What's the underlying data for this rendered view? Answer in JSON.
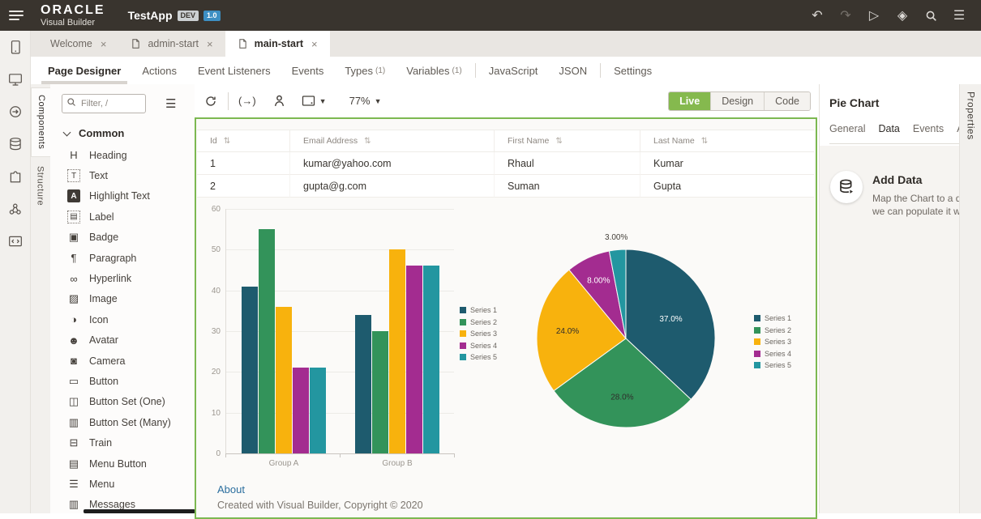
{
  "colors": {
    "accent_green": "#7cb851",
    "live_button_green": "#85b94e",
    "link_blue": "#2b6e9e",
    "header_dark": "#39342e",
    "version_badge_blue": "#3d8fc3"
  },
  "header": {
    "logo_line1": "ORACLE",
    "logo_line2": "Visual Builder",
    "app_name": "TestApp",
    "env_badge": "DEV",
    "version_badge": "1.0",
    "icons": [
      {
        "name": "undo-icon",
        "glyph": "undo",
        "disabled": false
      },
      {
        "name": "redo-icon",
        "glyph": "redo",
        "disabled": true
      },
      {
        "name": "run-play-icon",
        "glyph": "play",
        "disabled": false
      },
      {
        "name": "publish-diamond-icon",
        "glyph": "diamond",
        "disabled": false
      },
      {
        "name": "search-icon",
        "glyph": "search",
        "disabled": false
      },
      {
        "name": "overflow-menu-icon",
        "glyph": "menu",
        "disabled": false
      }
    ]
  },
  "left_rail": [
    {
      "name": "rail-tablet",
      "icon": "tablet-icon"
    },
    {
      "name": "rail-monitor",
      "icon": "monitor-icon"
    },
    {
      "name": "rail-service-connections",
      "icon": "circle-arrow-icon"
    },
    {
      "name": "rail-business-objects",
      "icon": "database-icon"
    },
    {
      "name": "rail-components",
      "icon": "puzzle-icon"
    },
    {
      "name": "rail-processes",
      "icon": "nodes-icon"
    },
    {
      "name": "rail-source",
      "icon": "code-brackets-icon"
    }
  ],
  "document_tabs": [
    {
      "label": "Welcome",
      "has_page_icon": false,
      "active": false
    },
    {
      "label": "admin-start",
      "has_page_icon": true,
      "active": false
    },
    {
      "label": "main-start",
      "has_page_icon": true,
      "active": true
    }
  ],
  "editor_tabs": [
    {
      "label": "Page Designer",
      "active": true
    },
    {
      "label": "Actions"
    },
    {
      "label": "Event Listeners"
    },
    {
      "label": "Events"
    },
    {
      "label": "Types",
      "count": "(1)"
    },
    {
      "label": "Variables",
      "count": "(1)"
    },
    {
      "label": "JavaScript",
      "sep_before": true
    },
    {
      "label": "JSON"
    },
    {
      "label": "Settings",
      "sep_before": true
    }
  ],
  "components_panel": {
    "side_tabs": [
      {
        "label": "Components",
        "active": true
      },
      {
        "label": "Structure",
        "active": false
      }
    ],
    "filter_placeholder": "Filter, /",
    "section_label": "Common",
    "items": [
      {
        "label": "Heading",
        "icon": "heading-icon"
      },
      {
        "label": "Text",
        "icon": "text-icon"
      },
      {
        "label": "Highlight Text",
        "icon": "highlight-text-icon"
      },
      {
        "label": "Label",
        "icon": "label-icon"
      },
      {
        "label": "Badge",
        "icon": "badge-icon"
      },
      {
        "label": "Paragraph",
        "icon": "paragraph-icon"
      },
      {
        "label": "Hyperlink",
        "icon": "hyperlink-icon"
      },
      {
        "label": "Image",
        "icon": "image-icon"
      },
      {
        "label": "Icon",
        "icon": "icon-icon"
      },
      {
        "label": "Avatar",
        "icon": "avatar-icon"
      },
      {
        "label": "Camera",
        "icon": "camera-icon"
      },
      {
        "label": "Button",
        "icon": "button-icon"
      },
      {
        "label": "Button Set (One)",
        "icon": "button-set-one-icon"
      },
      {
        "label": "Button Set (Many)",
        "icon": "button-set-many-icon"
      },
      {
        "label": "Train",
        "icon": "train-icon"
      },
      {
        "label": "Menu Button",
        "icon": "menu-button-icon"
      },
      {
        "label": "Menu",
        "icon": "menu-icon"
      },
      {
        "label": "Messages",
        "icon": "messages-icon"
      }
    ]
  },
  "canvas": {
    "toolbar": {
      "paren_arrow_glyph": "(→)",
      "zoom_level": "77%",
      "modes": [
        {
          "label": "Live",
          "active": true
        },
        {
          "label": "Design",
          "active": false
        },
        {
          "label": "Code",
          "active": false
        }
      ]
    },
    "table": {
      "columns": [
        "Id",
        "Email Address",
        "First Name",
        "Last Name"
      ],
      "rows": [
        [
          "1",
          "kumar@yahoo.com",
          "Rhaul",
          "Kumar"
        ],
        [
          "2",
          "gupta@g.com",
          "Suman",
          "Gupta"
        ]
      ]
    },
    "footer": {
      "link": "About",
      "copyright": "Created with Visual Builder, Copyright © 2020"
    }
  },
  "properties_panel": {
    "title": "Pie Chart",
    "tabs": [
      {
        "label": "General",
        "active": false
      },
      {
        "label": "Data",
        "active": true
      },
      {
        "label": "Events",
        "active": false
      },
      {
        "label": "All",
        "active": false
      }
    ],
    "vertical_label": "Properties",
    "add_data": {
      "heading": "Add Data",
      "description_line1": "Map the Chart to a da",
      "description_line2": "we can populate it wit"
    }
  },
  "chart_data": [
    {
      "type": "bar",
      "title": "",
      "categories": [
        "Group A",
        "Group B"
      ],
      "series": [
        {
          "name": "Series 1",
          "color": "#1e5b6e",
          "values": [
            41,
            34
          ]
        },
        {
          "name": "Series 2",
          "color": "#33935a",
          "values": [
            55,
            30
          ]
        },
        {
          "name": "Series 3",
          "color": "#f8b20d",
          "values": [
            36,
            50
          ]
        },
        {
          "name": "Series 4",
          "color": "#a32c90",
          "values": [
            21,
            46
          ]
        },
        {
          "name": "Series 5",
          "color": "#2396a0",
          "values": [
            21,
            46
          ]
        }
      ],
      "xlabel": "",
      "ylabel": "",
      "ylim": [
        0,
        60
      ],
      "ytick_step": 10,
      "grid": true,
      "legend_position": "right"
    },
    {
      "type": "pie",
      "title": "",
      "slices": [
        {
          "name": "Series 1",
          "color": "#1e5b6e",
          "value": 37.0,
          "label": "37.0%",
          "label_color": "#ffffff",
          "label_outside": false
        },
        {
          "name": "Series 2",
          "color": "#33935a",
          "value": 28.0,
          "label": "28.0%",
          "label_color": "#2f2d2b",
          "label_outside": false
        },
        {
          "name": "Series 3",
          "color": "#f8b20d",
          "value": 24.0,
          "label": "24.0%",
          "label_color": "#2f2d2b",
          "label_outside": false
        },
        {
          "name": "Series 4",
          "color": "#a32c90",
          "value": 8.0,
          "label": "8.00%",
          "label_color": "#ffffff",
          "label_outside": false
        },
        {
          "name": "Series 5",
          "color": "#2396a0",
          "value": 3.0,
          "label": "3.00%",
          "label_color": "#44403a",
          "label_outside": true
        }
      ],
      "start_angle_deg": 0,
      "direction": "clockwise",
      "legend_position": "right"
    }
  ]
}
